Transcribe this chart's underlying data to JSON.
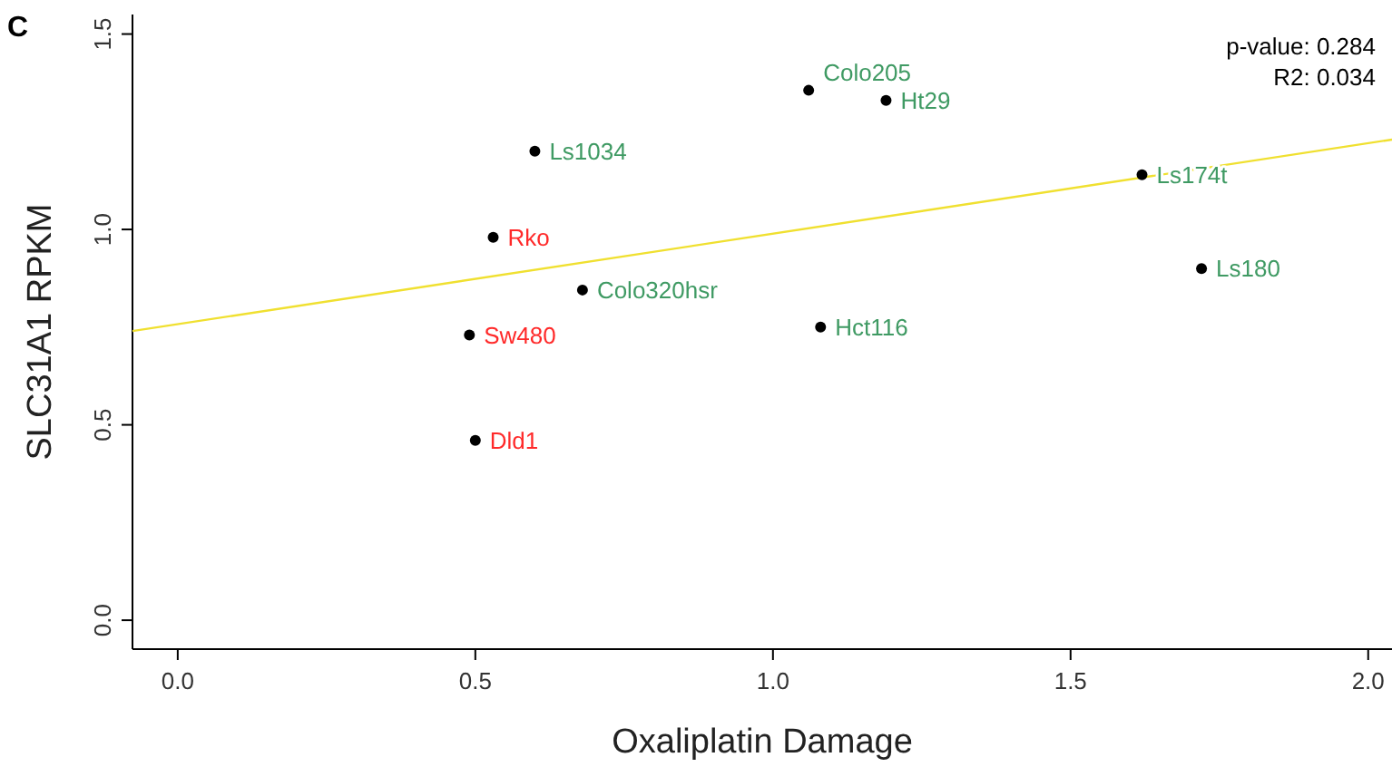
{
  "chart_data": {
    "type": "scatter",
    "xlabel": "Oxaliplatin Damage",
    "ylabel": "SLC31A1 RPKM",
    "xlim": [
      -0.076,
      2.04
    ],
    "ylim": [
      -0.074,
      1.55
    ],
    "xticks": [
      {
        "value": 0,
        "label": "0.0"
      },
      {
        "value": 0.5,
        "label": "0.5"
      },
      {
        "value": 1,
        "label": "1.0"
      },
      {
        "value": 1.5,
        "label": "1.5"
      },
      {
        "value": 2,
        "label": "2.0"
      }
    ],
    "yticks": [
      {
        "value": 0,
        "label": "0.0"
      },
      {
        "value": 0.5,
        "label": "0.5"
      },
      {
        "value": 1,
        "label": "1.0"
      },
      {
        "value": 1.5,
        "label": "1.5"
      }
    ],
    "grid": false,
    "marker": "circle",
    "series": [
      {
        "color": "#000000",
        "x": [
          0.53,
          0.49,
          0.5
        ],
        "values": [
          0.98,
          0.73,
          0.46
        ],
        "value_labels": [
          "Rko",
          "Sw480",
          "Dld1"
        ]
      },
      {
        "color": "#000000",
        "x": [
          1.06,
          1.19,
          0.6,
          1.62,
          1.72,
          0.68,
          1.08
        ],
        "values": [
          1.356,
          1.33,
          1.2,
          1.14,
          0.9,
          0.845,
          0.75
        ],
        "value_labels": [
          "Colo205",
          "Ht29",
          "Ls1034",
          "Ls174t",
          "Ls180",
          "Colo320hsr",
          "Hct116"
        ]
      },
      {
        "type": "line",
        "color": "#f0e030",
        "x": [
          -0.076,
          2.04
        ],
        "values": [
          0.74,
          1.23
        ],
        "marker": "none"
      }
    ],
    "annotations": [
      "C",
      "p-value: 0.284",
      "R2: 0.034"
    ]
  }
}
